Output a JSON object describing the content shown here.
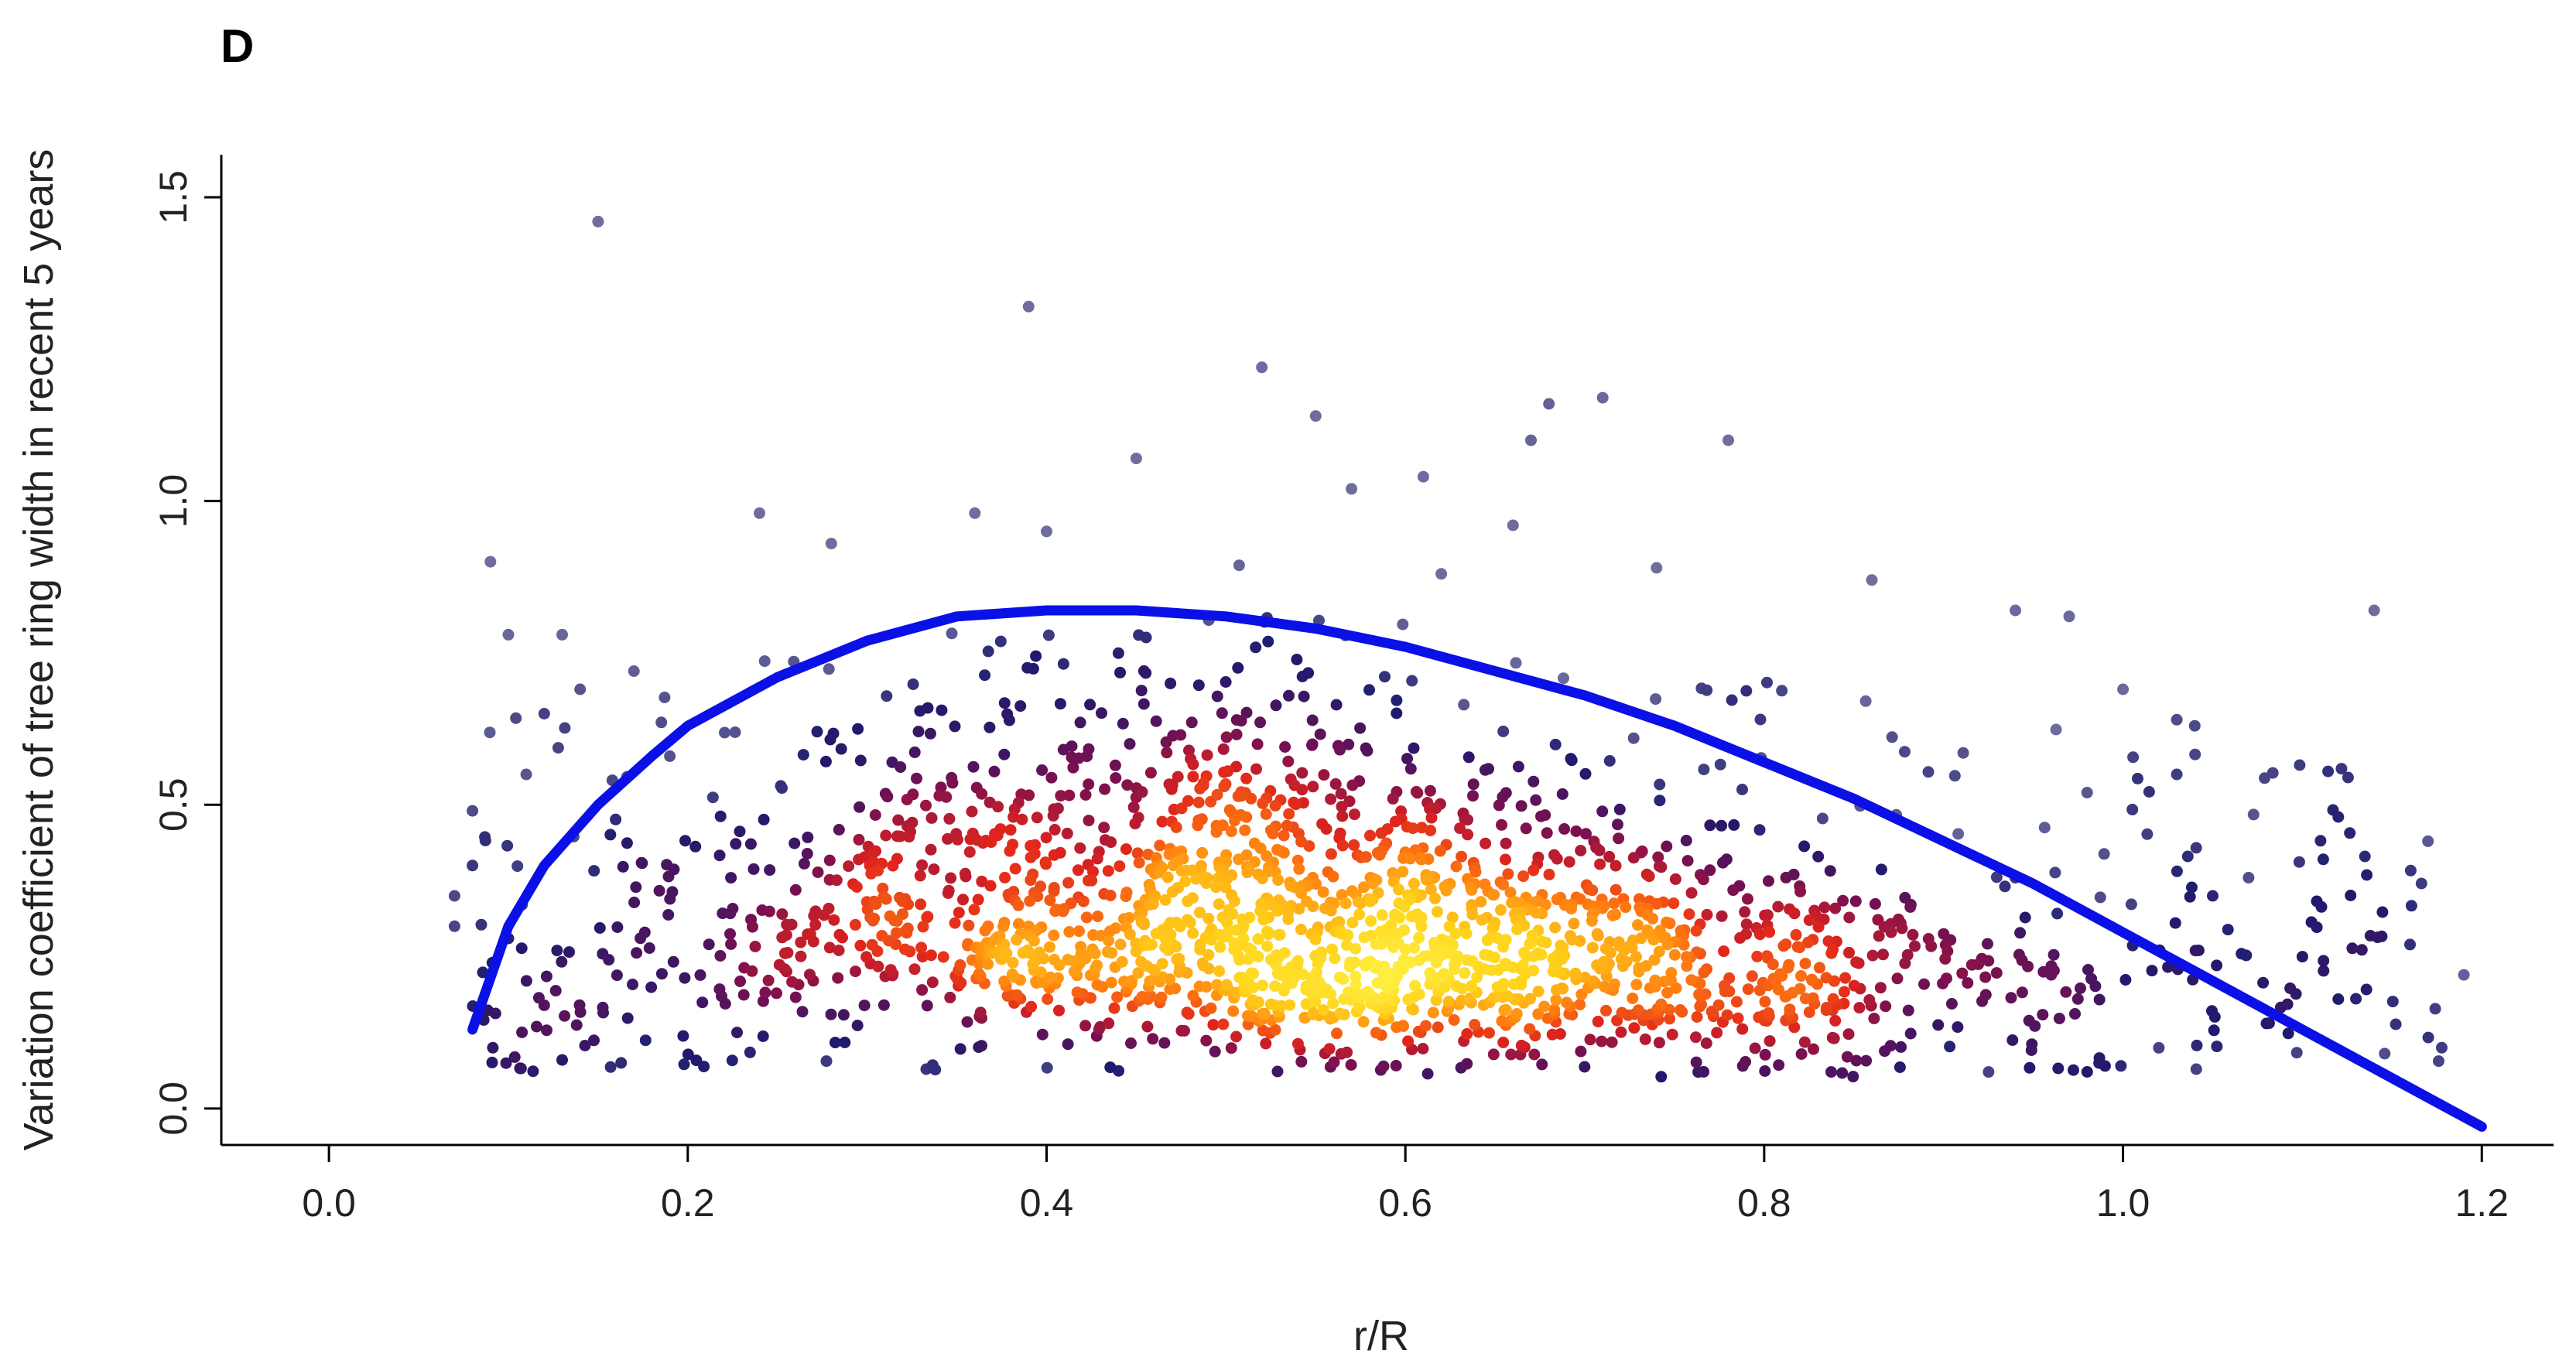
{
  "panel_label": "D",
  "chart_data": {
    "type": "scatter",
    "xlabel": "r/R",
    "ylabel": "Variation coefficient of tree ring width in recent 5 years",
    "xlim": [
      -0.06,
      1.24
    ],
    "ylim": [
      -0.06,
      1.57
    ],
    "x_ticks": [
      0.0,
      0.2,
      0.4,
      0.6,
      0.8,
      1.0,
      1.2
    ],
    "x_tick_labels": [
      "0.0",
      "0.2",
      "0.4",
      "0.6",
      "0.8",
      "1.0",
      "1.2"
    ],
    "y_ticks": [
      0.0,
      0.5,
      1.0,
      1.5
    ],
    "y_tick_labels": [
      "0.0",
      "0.5",
      "1.0",
      "1.5"
    ],
    "box": "left-bottom axes only",
    "grid": false,
    "legend": "none",
    "colors": {
      "fit_line": "#0a10e6",
      "density_ramp": [
        "#8c8cb0",
        "#1e1a6e",
        "#7a1050",
        "#e0241c",
        "#ff7a10",
        "#ffd21a",
        "#ffee40"
      ],
      "axis": "#000000"
    },
    "series": [
      {
        "kind": "points",
        "note_density": "smoothed-scatter colouring by local point density",
        "points": [
          [
            0.15,
            1.46
          ],
          [
            0.39,
            1.32
          ],
          [
            0.52,
            1.22
          ],
          [
            0.45,
            1.07
          ],
          [
            0.55,
            1.14
          ],
          [
            0.57,
            1.02
          ],
          [
            0.61,
            1.04
          ],
          [
            0.67,
            1.1
          ],
          [
            0.71,
            1.17
          ],
          [
            0.68,
            1.16
          ],
          [
            0.78,
            1.1
          ],
          [
            0.24,
            0.98
          ],
          [
            0.36,
            0.98
          ],
          [
            0.09,
            0.9
          ],
          [
            0.28,
            0.93
          ],
          [
            0.4,
            0.95
          ],
          [
            0.62,
            0.88
          ],
          [
            0.66,
            0.96
          ],
          [
            0.74,
            0.89
          ],
          [
            0.86,
            0.87
          ],
          [
            0.94,
            0.82
          ],
          [
            0.97,
            0.81
          ],
          [
            1.14,
            0.82
          ],
          [
            0.1,
            0.78
          ],
          [
            0.13,
            0.78
          ],
          [
            1.03,
            0.64
          ],
          [
            1.04,
            0.63
          ],
          [
            1.12,
            0.48
          ],
          [
            1.17,
            0.44
          ],
          [
            1.19,
            0.22
          ],
          [
            1.16,
            0.27
          ],
          [
            0.07,
            0.35
          ],
          [
            0.08,
            0.49
          ],
          [
            0.08,
            0.4
          ],
          [
            0.1,
            0.28
          ],
          [
            0.12,
            0.17
          ],
          [
            0.13,
            0.08
          ],
          [
            0.11,
            0.55
          ],
          [
            0.12,
            0.65
          ],
          [
            0.14,
            0.69
          ],
          [
            0.17,
            0.72
          ],
          [
            0.19,
            0.58
          ],
          [
            0.07,
            0.3
          ],
          [
            1.0,
            0.69
          ],
          [
            1.03,
            0.55
          ],
          [
            0.98,
            0.52
          ],
          [
            1.05,
            0.35
          ],
          [
            1.07,
            0.38
          ],
          [
            1.1,
            0.25
          ],
          [
            1.08,
            0.14
          ],
          [
            1.12,
            0.18
          ],
          [
            1.02,
            0.1
          ],
          [
            0.99,
            0.07
          ],
          [
            0.96,
            0.22
          ],
          [
            0.94,
            0.38
          ]
        ]
      },
      {
        "kind": "line",
        "name": "",
        "x": [
          0.08,
          0.1,
          0.12,
          0.15,
          0.18,
          0.2,
          0.25,
          0.3,
          0.35,
          0.4,
          0.45,
          0.5,
          0.55,
          0.6,
          0.65,
          0.7,
          0.75,
          0.8,
          0.85,
          0.9,
          0.95,
          1.0,
          1.05,
          1.1,
          1.15,
          1.2
        ],
        "y": [
          0.13,
          0.3,
          0.4,
          0.5,
          0.58,
          0.63,
          0.71,
          0.77,
          0.81,
          0.82,
          0.82,
          0.81,
          0.79,
          0.76,
          0.72,
          0.68,
          0.63,
          0.57,
          0.51,
          0.44,
          0.37,
          0.29,
          0.21,
          0.13,
          0.05,
          -0.03
        ]
      }
    ]
  }
}
